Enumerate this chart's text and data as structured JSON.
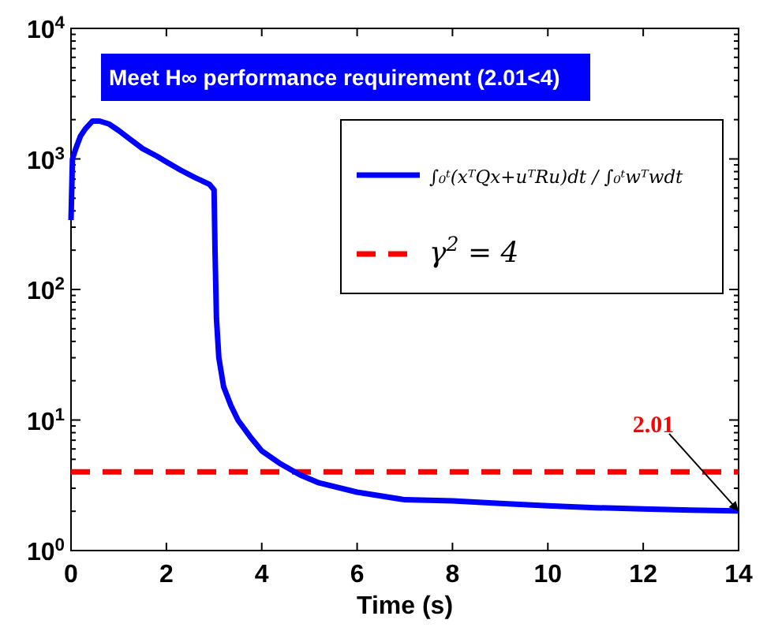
{
  "chart_data": {
    "type": "line",
    "title": "Meet H∞ performance requirement (2.01<4)",
    "xlabel": "Time (s)",
    "log": "y",
    "xlim": [
      0,
      14
    ],
    "ylim": [
      1,
      10000
    ],
    "xticks": [
      0,
      2,
      4,
      6,
      8,
      10,
      12,
      14
    ],
    "yticks": [
      {
        "value": 1,
        "label": "10$^{0}$"
      },
      {
        "value": 10,
        "label": "10$^{1}$"
      },
      {
        "value": 100,
        "label": "10$^{2}$"
      },
      {
        "value": 1000,
        "label": "10$^{3}$"
      },
      {
        "value": 10000,
        "label": "10$^{4}$"
      }
    ],
    "grid": false,
    "legend": "top right",
    "line_style": "solid",
    "marker": "none",
    "series": [
      {
        "name": "∫₀ᵗ(xᵀQx+uᵀRu)dt / ∫₀ᵗwᵀwdt",
        "color": "#0000ff",
        "x": [
          0,
          0.03,
          0.1,
          0.2,
          0.3,
          0.45,
          0.6,
          0.8,
          1,
          1.2,
          1.5,
          1.8,
          2,
          2.3,
          2.6,
          2.9,
          3,
          3.02,
          3.05,
          3.1,
          3.2,
          3.35,
          3.5,
          3.75,
          4,
          4.4,
          4.8,
          5.2,
          6,
          7,
          8,
          9,
          10,
          11,
          12,
          13,
          14
        ],
        "values": [
          340,
          1000,
          1200,
          1500,
          1700,
          1950,
          1950,
          1850,
          1650,
          1450,
          1200,
          1050,
          950,
          820,
          720,
          640,
          580,
          200,
          60,
          30,
          18,
          13,
          10,
          7.5,
          5.8,
          4.6,
          3.8,
          3.3,
          2.8,
          2.45,
          2.4,
          2.3,
          2.2,
          2.13,
          2.08,
          2.04,
          2.01
        ]
      }
    ],
    "ref_lines": [
      {
        "axis": "y",
        "value": 4,
        "label": "γ$^{2}$ = 4",
        "color": "#ff0000",
        "line_style": "dashed"
      }
    ],
    "annotations": [
      {
        "text": "2.01",
        "x": 14,
        "y": 2.01
      }
    ]
  }
}
